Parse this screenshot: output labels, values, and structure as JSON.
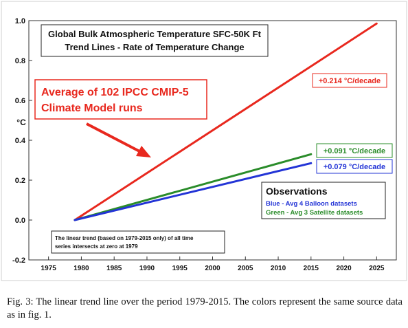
{
  "chart_data": {
    "type": "line",
    "title_lines": [
      "Global Bulk Atmospheric Temperature SFC-50K  Ft",
      "Trend Lines - Rate of Temperature Change"
    ],
    "ylabel": "°C",
    "xlabel": "",
    "xlim": [
      1972,
      2028
    ],
    "ylim": [
      -0.2,
      1.0
    ],
    "x_ticks": [
      1975,
      1980,
      1985,
      1990,
      1995,
      2000,
      2005,
      2010,
      2015,
      2020,
      2025
    ],
    "y_ticks": [
      {
        "value": -0.2,
        "label": "-0.2"
      },
      {
        "value": 0.0,
        "label": "0.0"
      },
      {
        "value": 0.2,
        "label": "0.2"
      },
      {
        "value": 0.4,
        "label": "0.4"
      },
      {
        "value": 0.6,
        "label": "0.6"
      },
      {
        "value": 0.8,
        "label": "0.8"
      },
      {
        "value": 1.0,
        "label": "1.0"
      }
    ],
    "grid": false,
    "series": [
      {
        "color": "#e8281e",
        "x": [
          1979,
          2025
        ],
        "y": [
          0.0,
          0.985
        ],
        "label": "+0.214 °C/decade"
      },
      {
        "color": "#2a8c2a",
        "x": [
          1979,
          2015
        ],
        "y": [
          0.0,
          0.33
        ],
        "label": "+0.091 °C/decade"
      },
      {
        "color": "#2334d6",
        "x": [
          1979,
          2015
        ],
        "y": [
          0.0,
          0.285
        ],
        "label": "+0.079 °C/decade"
      }
    ],
    "model_annotation": [
      "Average of 102 IPCC CMIP-5",
      "Climate Model runs"
    ],
    "observations": {
      "title": "Observations",
      "blue": "Blue - Avg 4 Balloon datasets",
      "green": "Green - Avg 3 Satellite datasets"
    },
    "note_lines": [
      "The linear trend (based on 1979-2015 only) of all time",
      "series intersects at zero at 1979"
    ]
  },
  "caption": "Fig. 3:  The linear trend line over the period 1979-2015. The colors represent the same source data as in fig. 1."
}
